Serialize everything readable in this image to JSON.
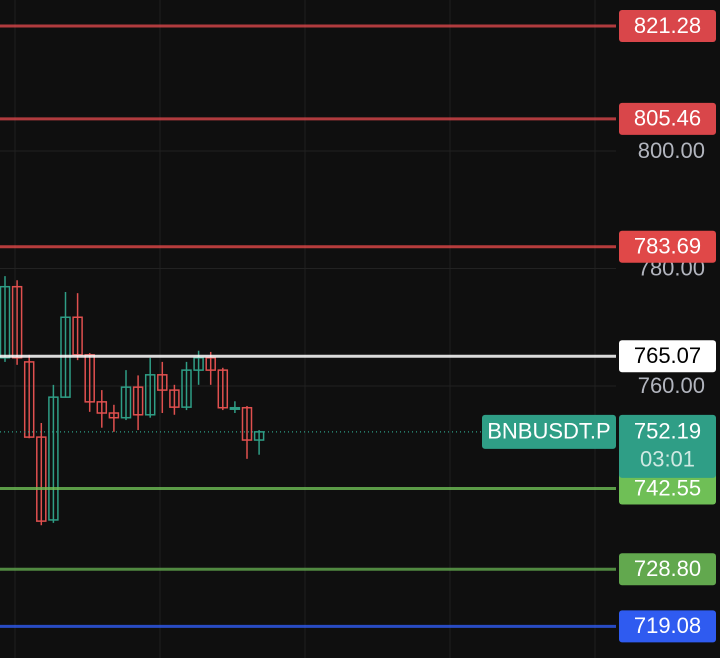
{
  "chart_data": {
    "type": "candlestick",
    "symbol": "BNBUSDT.P",
    "last_price": 752.19,
    "countdown": "03:01",
    "up_color": "#2f9e86",
    "down_color": "#e0504f",
    "ylim": [
      713.7,
      825.7
    ],
    "yticks": [
      {
        "value": 760,
        "label": "760.00"
      },
      {
        "value": 780,
        "label": "780.00"
      },
      {
        "value": 800,
        "label": "800.00"
      }
    ],
    "grid": true,
    "open": [
      764.8,
      776.9,
      764.1,
      751.3,
      737.2,
      758.1,
      771.7,
      765.3,
      757.3,
      755.4,
      754.6,
      759.8,
      755.1,
      761.9,
      759.3,
      756.4,
      762.7,
      764.8,
      762.7,
      756.2,
      756.3,
      750.8
    ],
    "high": [
      778.7,
      778.0,
      765.3,
      753.7,
      760.2,
      776.0,
      775.8,
      765.6,
      759.3,
      756.8,
      762.7,
      761.8,
      764.8,
      764.1,
      760.2,
      764.1,
      766.0,
      765.8,
      763.1,
      757.4,
      756.6,
      752.5
    ],
    "low": [
      764.1,
      763.6,
      751.1,
      736.3,
      736.7,
      758.0,
      764.4,
      755.6,
      752.9,
      752.2,
      754.2,
      752.5,
      754.6,
      755.4,
      755.1,
      755.9,
      760.2,
      760.2,
      755.9,
      755.4,
      747.6,
      748.3
    ],
    "close": [
      776.9,
      764.8,
      751.3,
      737.0,
      758.1,
      771.7,
      765.3,
      757.3,
      755.4,
      754.6,
      759.8,
      755.1,
      761.9,
      759.3,
      756.4,
      762.7,
      764.8,
      762.7,
      756.3,
      756.3,
      750.8,
      752.19
    ],
    "levels": [
      {
        "value": 821.28,
        "color": "#d9464a"
      },
      {
        "value": 805.46,
        "color": "#d9464a"
      },
      {
        "value": 783.69,
        "color": "#e04848"
      },
      {
        "value": 765.07,
        "color": "#ffffff"
      },
      {
        "value": 742.55,
        "color": "#6fbf56"
      },
      {
        "value": 728.8,
        "label": "728.80",
        "color": "#62a84e"
      },
      {
        "value": 719.08,
        "color": "#2f5bf0"
      }
    ]
  }
}
